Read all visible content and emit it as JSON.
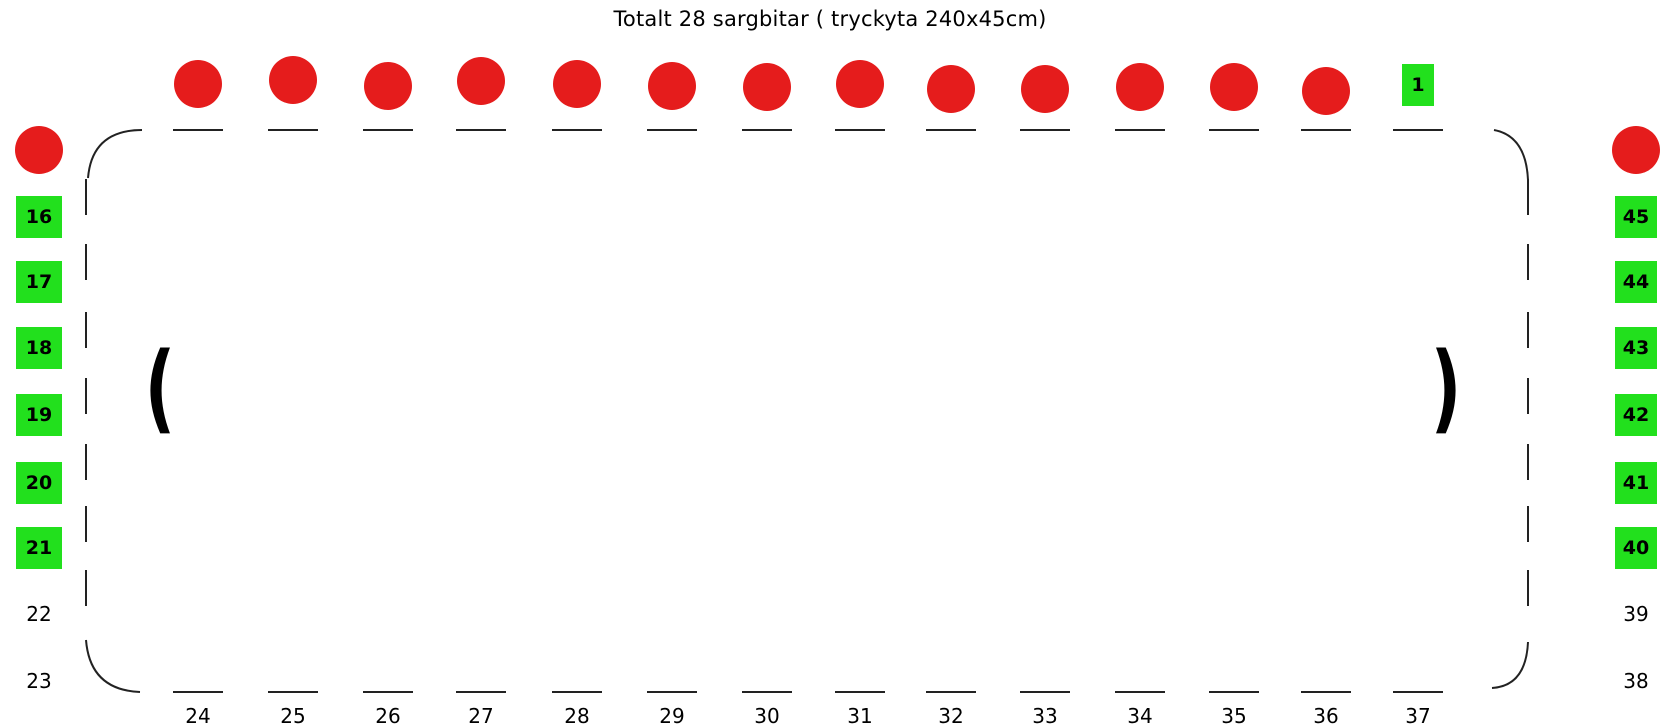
{
  "title": "Totalt 28 sargbitar ( tryckyta 240x45cm)",
  "colors": {
    "marker": "#e51c1c",
    "highlight": "#22e01d",
    "outline": "#222222"
  },
  "top_row": [
    {
      "label": "",
      "state": "red"
    },
    {
      "label": "",
      "state": "red"
    },
    {
      "label": "",
      "state": "red"
    },
    {
      "label": "",
      "state": "red"
    },
    {
      "label": "",
      "state": "red"
    },
    {
      "label": "",
      "state": "red"
    },
    {
      "label": "",
      "state": "red"
    },
    {
      "label": "",
      "state": "red"
    },
    {
      "label": "",
      "state": "red"
    },
    {
      "label": "",
      "state": "red"
    },
    {
      "label": "",
      "state": "red"
    },
    {
      "label": "",
      "state": "red"
    },
    {
      "label": "",
      "state": "red"
    },
    {
      "label": "1",
      "state": "green"
    }
  ],
  "bottom_row": [
    "24",
    "25",
    "26",
    "27",
    "28",
    "29",
    "30",
    "31",
    "32",
    "33",
    "34",
    "35",
    "36",
    "37"
  ],
  "left_column": [
    {
      "label": "",
      "state": "red"
    },
    {
      "label": "16",
      "state": "green"
    },
    {
      "label": "17",
      "state": "green"
    },
    {
      "label": "18",
      "state": "green"
    },
    {
      "label": "19",
      "state": "green"
    },
    {
      "label": "20",
      "state": "green"
    },
    {
      "label": "21",
      "state": "green"
    },
    {
      "label": "22",
      "state": "plain"
    },
    {
      "label": "23",
      "state": "plain"
    }
  ],
  "right_column": [
    {
      "label": "",
      "state": "red"
    },
    {
      "label": "45",
      "state": "green"
    },
    {
      "label": "44",
      "state": "green"
    },
    {
      "label": "43",
      "state": "green"
    },
    {
      "label": "42",
      "state": "green"
    },
    {
      "label": "41",
      "state": "green"
    },
    {
      "label": "40",
      "state": "green"
    },
    {
      "label": "39",
      "state": "plain"
    },
    {
      "label": "38",
      "state": "plain"
    }
  ],
  "brackets": {
    "left": "(",
    "right": ")"
  }
}
